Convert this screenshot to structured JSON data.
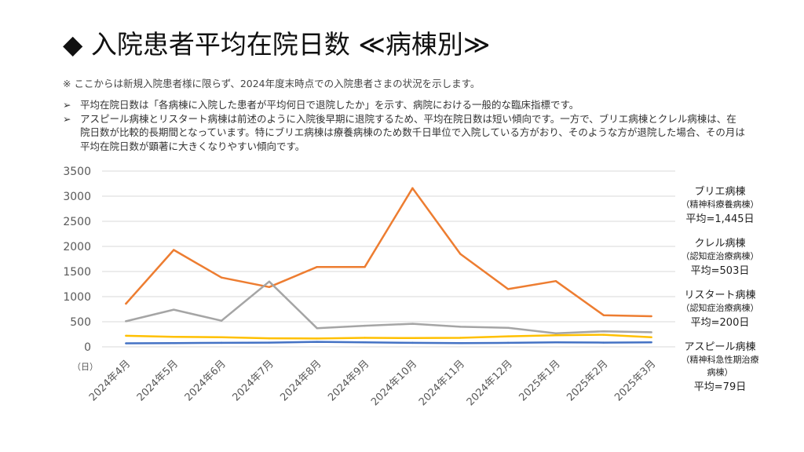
{
  "slide": {
    "title": "◆ 入院患者平均在院日数 ≪病棟別≫",
    "note": "※ ここからは新規入院患者様に限らず、2024年度末時点での入院患者さまの状況を示します。",
    "bullets": [
      {
        "marker": "➢",
        "text": "平均在院日数は「各病棟に入院した患者が平均何日で退院したか」を示す、病院における一般的な臨床指標です。"
      },
      {
        "marker": "➢",
        "text": "アスピール病棟とリスタート病棟は前述のように入院後早期に退院するため、平均在院日数は短い傾向です。一方で、ブリエ病棟とクレル病棟は、在院日数が比較的長期間となっています。特にブリエ病棟は療養病棟のため数千日単位で入院している方がおり、そのような方が退院した場合、その月は平均在院日数が顕著に大きくなりやすい傾向です。"
      }
    ]
  },
  "legend": [
    {
      "name": "ブリエ病棟",
      "sub": "（精神科療養病棟）",
      "avg": "平均=1,445日"
    },
    {
      "name": "クレル病棟",
      "sub": "（認知症治療病棟）",
      "avg": "平均=503日"
    },
    {
      "name": "リスタート病棟",
      "sub": "（認知症治療病棟）",
      "avg": "平均=200日"
    },
    {
      "name": "アスピール病棟",
      "sub": "（精神科急性期治療病棟）",
      "avg": "平均=79日"
    }
  ],
  "chart_data": {
    "type": "line",
    "ylabel": "（日）",
    "ylim": [
      0,
      3500
    ],
    "yticks": [
      "0",
      "500",
      "1000",
      "1500",
      "2000",
      "2500",
      "3000",
      "3500"
    ],
    "categories": [
      "2024年4月",
      "2024年5月",
      "2024年6月",
      "2024年7月",
      "2024年8月",
      "2024年9月",
      "2024年10月",
      "2024年11月",
      "2024年12月",
      "2025年1月",
      "2025年2月",
      "2025年3月"
    ],
    "grid": "horizontal",
    "series": [
      {
        "name": "ブリエ病棟",
        "color": "#ED7D31",
        "values": [
          860,
          1930,
          1380,
          1190,
          1590,
          1590,
          3160,
          1850,
          1150,
          1310,
          630,
          610
        ]
      },
      {
        "name": "クレル病棟",
        "color": "#A5A5A5",
        "values": [
          510,
          740,
          520,
          1300,
          370,
          420,
          460,
          400,
          380,
          270,
          310,
          290
        ]
      },
      {
        "name": "リスタート病棟",
        "color": "#FFC000",
        "values": [
          220,
          200,
          190,
          170,
          165,
          180,
          175,
          180,
          210,
          230,
          240,
          190
        ]
      },
      {
        "name": "アスピール病棟",
        "color": "#4472C4",
        "values": [
          70,
          75,
          80,
          85,
          100,
          90,
          80,
          75,
          80,
          90,
          85,
          90
        ]
      }
    ]
  }
}
